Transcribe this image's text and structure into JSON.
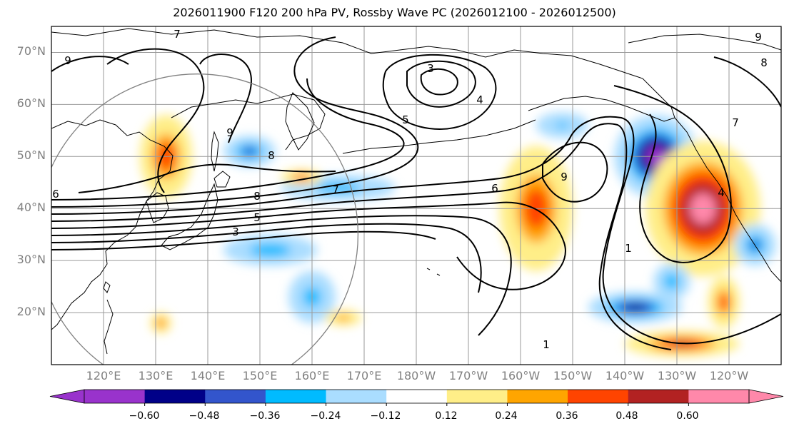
{
  "title": "2026011900 F120 200 hPa PV, Rossby Wave PC (2026012100 - 2026012500)",
  "latitude_labels": [
    "70°N",
    "60°N",
    "50°N",
    "40°N",
    "30°N",
    "20°N"
  ],
  "longitude_labels": [
    "120°E",
    "130°E",
    "140°E",
    "150°E",
    "160°E",
    "170°E",
    "180°W",
    "170°W",
    "160°W",
    "150°W",
    "140°W",
    "130°W",
    "120°W"
  ],
  "colorbar": {
    "colors": [
      "#9933cc",
      "#000088",
      "#3355cc",
      "#00bbff",
      "#aaddff",
      "#ffffff",
      "#ffee88",
      "#ffa500",
      "#ff4400",
      "#b22222",
      "#ff88aa"
    ],
    "tick_labels": [
      "−0.60",
      "−0.48",
      "−0.36",
      "−0.24",
      "−0.12",
      "0.12",
      "0.24",
      "0.36",
      "0.48",
      "0.60"
    ],
    "extend": "both"
  },
  "contour_labels": [
    "9",
    "7",
    "3",
    "4",
    "5",
    "8",
    "9",
    "8",
    "7",
    "5",
    "3",
    "6",
    "9",
    "4",
    "1",
    "1",
    "7",
    "8",
    "9",
    "6"
  ],
  "chart_data": {
    "type": "heatmap",
    "title": "2026011900 F120 200 hPa PV, Rossby Wave PC (2026012100 - 2026012500)",
    "extent": {
      "lon": [
        110,
        250
      ],
      "lat": [
        10,
        75
      ]
    },
    "projection": "PlateCarree",
    "grid": true,
    "shaded_field": {
      "name": "Rossby Wave PC",
      "levels": [
        -0.6,
        -0.48,
        -0.36,
        -0.24,
        -0.12,
        0.12,
        0.24,
        0.36,
        0.48,
        0.6
      ],
      "anomalies": [
        {
          "lon": 226,
          "lat": 50,
          "value": -0.66,
          "rx": 8,
          "ry": 8
        },
        {
          "lon": 235,
          "lat": 40,
          "value": 0.66,
          "rx": 11,
          "ry": 13
        },
        {
          "lon": 203,
          "lat": 40,
          "value": 0.45,
          "rx": 7,
          "ry": 12
        },
        {
          "lon": 222,
          "lat": 21,
          "value": -0.52,
          "rx": 9,
          "ry": 3
        },
        {
          "lon": 231,
          "lat": 14,
          "value": 0.5,
          "rx": 11,
          "ry": 2.5
        },
        {
          "lon": 132,
          "lat": 50,
          "value": 0.45,
          "rx": 5,
          "ry": 8
        },
        {
          "lon": 148,
          "lat": 51,
          "value": -0.42,
          "rx": 5,
          "ry": 3
        },
        {
          "lon": 165,
          "lat": 44,
          "value": -0.33,
          "rx": 11,
          "ry": 2.5
        },
        {
          "lon": 152,
          "lat": 32,
          "value": -0.36,
          "rx": 9,
          "ry": 3
        },
        {
          "lon": 160,
          "lat": 23,
          "value": -0.33,
          "rx": 4.5,
          "ry": 5
        },
        {
          "lon": 158,
          "lat": 46,
          "value": 0.42,
          "rx": 4,
          "ry": 1.5
        },
        {
          "lon": 208,
          "lat": 56,
          "value": -0.27,
          "rx": 5,
          "ry": 2.5
        },
        {
          "lon": 245,
          "lat": 33,
          "value": -0.4,
          "rx": 4,
          "ry": 4
        },
        {
          "lon": 239,
          "lat": 22,
          "value": 0.42,
          "rx": 3,
          "ry": 5
        },
        {
          "lon": 229,
          "lat": 26,
          "value": -0.36,
          "rx": 3.5,
          "ry": 3.5
        },
        {
          "lon": 131,
          "lat": 18,
          "value": 0.4,
          "rx": 2,
          "ry": 2
        },
        {
          "lon": 166,
          "lat": 19,
          "value": 0.35,
          "rx": 3.5,
          "ry": 1.5
        }
      ]
    },
    "contours": {
      "name": "200 hPa PV",
      "color": "#000000"
    },
    "circle_center": {
      "lon": 138,
      "lat": 35
    }
  }
}
